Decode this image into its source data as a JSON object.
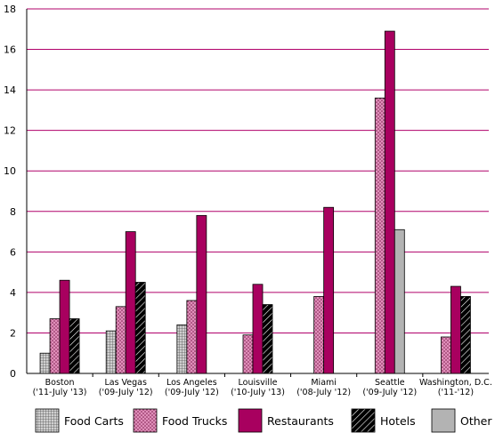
{
  "chart_data": {
    "type": "bar",
    "categories": [
      [
        "Boston",
        "('11-July '13)"
      ],
      [
        "Las Vegas",
        "('09-July '12)"
      ],
      [
        "Los Angeles",
        "('09-July '12)"
      ],
      [
        "Louisville",
        "('10-July '13)"
      ],
      [
        "Miami",
        "('08-July '12)"
      ],
      [
        "Seattle",
        "('09-July '12)"
      ],
      [
        "Washington, D.C.",
        "('11-'12)"
      ]
    ],
    "series": [
      {
        "name": "Food Carts",
        "pattern": "grid",
        "color": "#b8b8b8",
        "values": [
          1.0,
          2.1,
          2.4,
          null,
          null,
          null,
          null
        ]
      },
      {
        "name": "Food Trucks",
        "pattern": "dots",
        "color": "#d97aad",
        "values": [
          2.7,
          3.3,
          3.6,
          1.9,
          3.8,
          13.6,
          1.8
        ]
      },
      {
        "name": "Restaurants",
        "pattern": "solid",
        "color": "#a8005f",
        "values": [
          4.6,
          7.0,
          7.8,
          4.4,
          8.2,
          16.9,
          4.3
        ]
      },
      {
        "name": "Hotels",
        "pattern": "diagonal",
        "color": "#000000",
        "values": [
          2.7,
          4.5,
          null,
          3.4,
          null,
          null,
          3.8
        ]
      },
      {
        "name": "Other",
        "pattern": "solidgray",
        "color": "#b3b3b3",
        "values": [
          null,
          null,
          null,
          null,
          null,
          7.1,
          null
        ]
      }
    ],
    "ylim": [
      0,
      18
    ],
    "yticks": [
      0,
      2,
      4,
      6,
      8,
      10,
      12,
      14,
      16,
      18
    ],
    "grid": true,
    "grid_color": "#b0006a",
    "title": "",
    "xlabel": "",
    "ylabel": "",
    "legend_position": "bottom"
  }
}
